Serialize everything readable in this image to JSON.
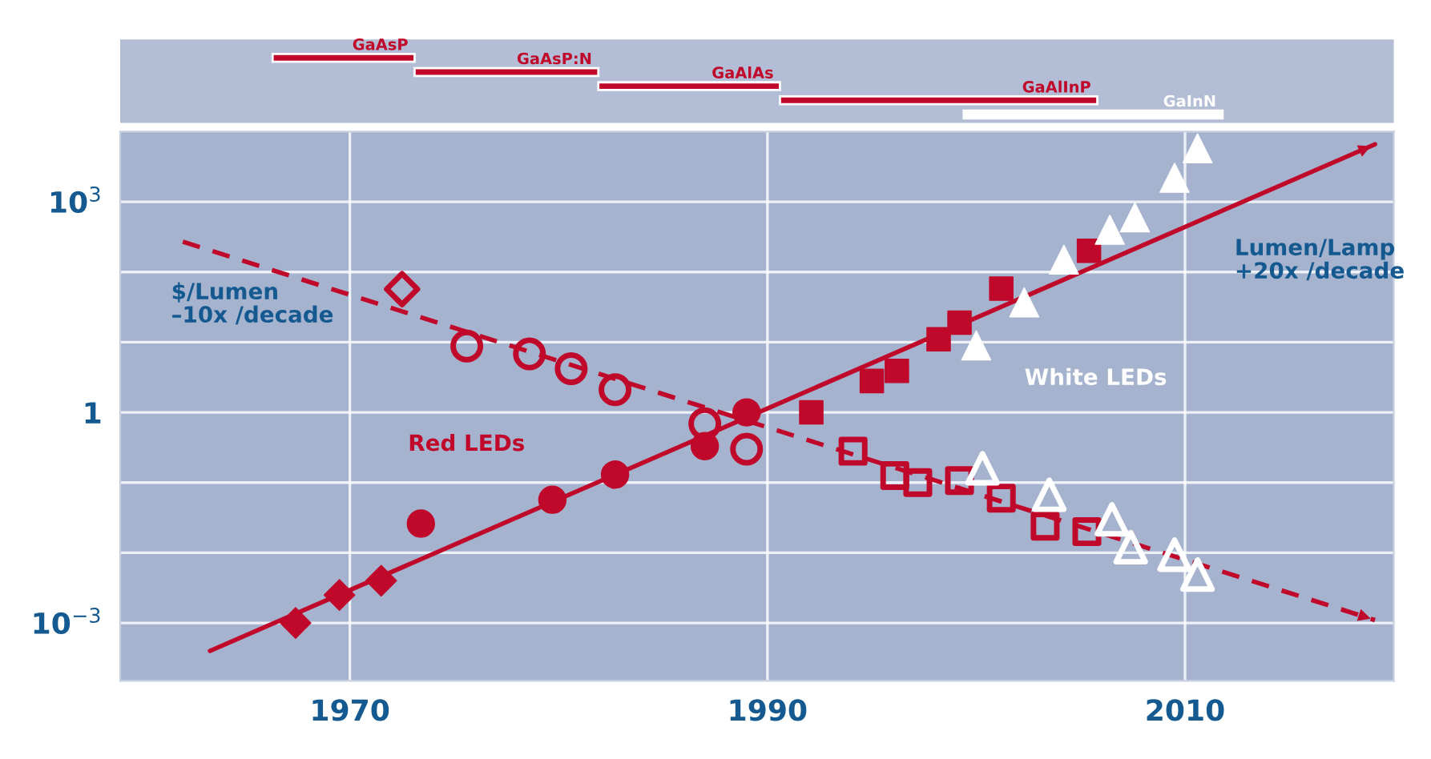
{
  "chart_data": [
    {
      "type": "scatter",
      "log": "y",
      "xlim": [
        1959,
        2020
      ],
      "ylim": [
        0.00015,
        10000
      ],
      "xticks": [
        1970,
        1990,
        2010
      ],
      "yticks": [
        {
          "value": 0.001,
          "label": "10$^{−3}$"
        },
        {
          "value": 0.01,
          "label": null
        },
        {
          "value": 0.1,
          "label": null
        },
        {
          "value": 1,
          "label": "1"
        },
        {
          "value": 10,
          "label": null
        },
        {
          "value": 100,
          "label": null
        },
        {
          "value": 1000,
          "label": "10$^{3}$"
        }
      ],
      "grid": true,
      "series": [
        {
          "type": "line",
          "color": "#c0082a",
          "line_style": "solid",
          "x": [
            1963.3,
            2019.1
          ],
          "values": [
            0.0004,
            6600
          ]
        },
        {
          "type": "line",
          "color": "#c0082a",
          "line_style": "dashed",
          "x": [
            1962.0,
            2019.1
          ],
          "values": [
            270,
            0.0011
          ]
        },
        {
          "color": "#c0082a",
          "marker": "diamond",
          "x": [
            1967.4,
            1969.5,
            1971.5
          ],
          "values": [
            0.001,
            0.0025,
            0.004
          ]
        },
        {
          "color": "#c0082a",
          "marker": "circle",
          "x": [
            1973.4,
            1979.7
          ],
          "values": [
            0.026,
            0.057
          ]
        },
        {
          "color": "#c0082a",
          "marker": "circle",
          "x": [
            1982.7,
            1987.0,
            1989.0
          ],
          "values": [
            0.13,
            0.33,
            1
          ]
        },
        {
          "color": "#c0082a",
          "marker": "square",
          "x": [
            1992.1,
            1995.0,
            1996.2,
            1998.2,
            1999.2,
            2001.2,
            2005.4
          ],
          "values": [
            1,
            2.8,
            3.9,
            11,
            19,
            58,
            200
          ]
        },
        {
          "color": "#ffffff",
          "marker": "triangle",
          "x": [
            2000.0,
            2002.3,
            2004.2,
            2006.4,
            2007.6,
            2009.5,
            2010.6
          ],
          "values": [
            9,
            37,
            150,
            400,
            600,
            2200,
            5800
          ]
        },
        {
          "color": "#c0082a",
          "marker": "diamond-open",
          "x": [
            1972.5
          ],
          "values": [
            57
          ]
        },
        {
          "color": "#c0082a",
          "marker": "circle-open",
          "x": [
            1975.6,
            1978.6,
            1980.6
          ],
          "values": [
            8.8,
            6.8,
            4.2
          ]
        },
        {
          "color": "#c0082a",
          "marker": "circle-open",
          "x": [
            1982.7,
            1987.0,
            1989.0
          ],
          "values": [
            2.1,
            0.69,
            0.3
          ]
        },
        {
          "color": "#c0082a",
          "marker": "square-open",
          "x": [
            1994.1,
            1996.1,
            1997.2,
            1999.2,
            2001.2,
            2003.3,
            2005.3
          ],
          "values": [
            0.28,
            0.126,
            0.1,
            0.107,
            0.06,
            0.024,
            0.02
          ]
        },
        {
          "color": "#ffffff",
          "marker": "triangle-open",
          "x": [
            2000.3,
            2003.5,
            2006.5,
            2007.4,
            2009.5,
            2010.6
          ],
          "values": [
            0.16,
            0.067,
            0.03,
            0.012,
            0.0094,
            0.0049
          ]
        }
      ],
      "annotations": [
        "$/Lumen\n–10x /decade",
        "Lumen/Lamp\n+20x /decade",
        "Red LEDs",
        "White LEDs"
      ]
    },
    {
      "type": "bar",
      "orientation": "horizontal",
      "tick_labels": false,
      "xlim": [
        1959,
        2020
      ],
      "categories": [
        null,
        null,
        null,
        null,
        null
      ],
      "annotations": [
        "GaAsP",
        "GaAsP:N",
        "GaAlAs",
        "GaAlInP",
        "GaInN"
      ],
      "base": [
        1966.3,
        1973.1,
        1981.9,
        1990.6,
        1999.4
      ],
      "values": [
        6.8,
        8.8,
        8.7,
        15.2,
        12.4
      ],
      "colors": [
        "#c0082a",
        "#c0082a",
        "#c0082a",
        "#c0082a",
        "#ffffff"
      ]
    }
  ]
}
